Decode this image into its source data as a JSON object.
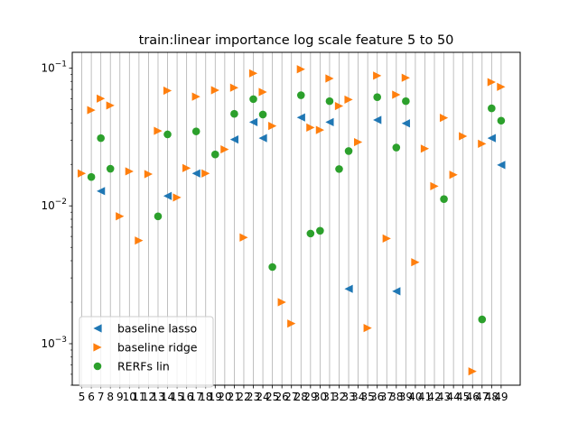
{
  "chart_data": {
    "type": "scatter",
    "title": "train:linear importance log scale feature 5 to 50",
    "xlabel": "",
    "ylabel": "",
    "yscale": "log",
    "ylim": [
      0.0005,
      0.13
    ],
    "xlim": [
      4,
      51
    ],
    "grid": "vertical lines at each feature",
    "legend_position": "lower-left",
    "x_ticks": [
      5,
      6,
      7,
      8,
      9,
      10,
      11,
      12,
      13,
      14,
      15,
      16,
      17,
      18,
      19,
      20,
      21,
      22,
      23,
      24,
      25,
      26,
      27,
      28,
      29,
      30,
      31,
      32,
      33,
      34,
      35,
      36,
      37,
      38,
      39,
      40,
      41,
      42,
      43,
      44,
      45,
      46,
      47,
      48,
      49
    ],
    "x_tick_labels": [
      "5",
      "6",
      "7",
      "8",
      "9",
      "10",
      "11",
      "12",
      "13",
      "14",
      "15",
      "16",
      "17",
      "18",
      "19",
      "20",
      "21",
      "22",
      "23",
      "24",
      "25",
      "26",
      "27",
      "28",
      "29",
      "30",
      "31",
      "32",
      "33",
      "34",
      "35",
      "36",
      "37",
      "38",
      "39",
      "40",
      "41",
      "42",
      "43",
      "44",
      "45",
      "46",
      "47",
      "48",
      "49"
    ],
    "y_tick_labels": [
      {
        "value": 0.001,
        "base": "10",
        "exp": "−3"
      },
      {
        "value": 0.01,
        "base": "10",
        "exp": "−2"
      },
      {
        "value": 0.1,
        "base": "10",
        "exp": "−1"
      }
    ],
    "series": [
      {
        "name": "baseline lasso",
        "color": "#1f77b4",
        "marker": "triangle-left",
        "points": [
          [
            7,
            0.0128
          ],
          [
            14,
            0.0118
          ],
          [
            17,
            0.0172
          ],
          [
            21,
            0.0303
          ],
          [
            23,
            0.0405
          ],
          [
            24,
            0.031
          ],
          [
            28,
            0.0438
          ],
          [
            31,
            0.0405
          ],
          [
            33,
            0.0025
          ],
          [
            36,
            0.042
          ],
          [
            38,
            0.0024
          ],
          [
            39,
            0.0397
          ],
          [
            48,
            0.031
          ],
          [
            49,
            0.0198
          ]
        ]
      },
      {
        "name": "baseline ridge",
        "color": "#ff7f0e",
        "marker": "triangle-right",
        "points": [
          [
            5,
            0.0172
          ],
          [
            6,
            0.0495
          ],
          [
            7,
            0.06
          ],
          [
            8,
            0.0535
          ],
          [
            9,
            0.0084
          ],
          [
            10,
            0.0178
          ],
          [
            11,
            0.0056
          ],
          [
            12,
            0.017
          ],
          [
            13,
            0.035
          ],
          [
            14,
            0.0685
          ],
          [
            15,
            0.0115
          ],
          [
            16,
            0.0188
          ],
          [
            17,
            0.062
          ],
          [
            18,
            0.0172
          ],
          [
            19,
            0.069
          ],
          [
            20,
            0.0257
          ],
          [
            21,
            0.072
          ],
          [
            22,
            0.0059
          ],
          [
            23,
            0.0915
          ],
          [
            24,
            0.067
          ],
          [
            25,
            0.038
          ],
          [
            26,
            0.002
          ],
          [
            27,
            0.0014
          ],
          [
            28,
            0.098
          ],
          [
            29,
            0.037
          ],
          [
            30,
            0.0355
          ],
          [
            31,
            0.084
          ],
          [
            32,
            0.053
          ],
          [
            33,
            0.059
          ],
          [
            34,
            0.029
          ],
          [
            35,
            0.0013
          ],
          [
            36,
            0.088
          ],
          [
            37,
            0.0058
          ],
          [
            38,
            0.064
          ],
          [
            39,
            0.085
          ],
          [
            40,
            0.0039
          ],
          [
            41,
            0.026
          ],
          [
            42,
            0.0139
          ],
          [
            43,
            0.0435
          ],
          [
            44,
            0.0168
          ],
          [
            45,
            0.032
          ],
          [
            46,
            0.00063
          ],
          [
            47,
            0.0282
          ],
          [
            48,
            0.079
          ],
          [
            49,
            0.073
          ]
        ]
      },
      {
        "name": "RERFs lin",
        "color": "#2ca02c",
        "marker": "circle",
        "points": [
          [
            6,
            0.0162
          ],
          [
            7,
            0.031
          ],
          [
            8,
            0.0186
          ],
          [
            13,
            0.0084
          ],
          [
            14,
            0.033
          ],
          [
            17,
            0.0347
          ],
          [
            19,
            0.0236
          ],
          [
            21,
            0.0465
          ],
          [
            23,
            0.0595
          ],
          [
            24,
            0.046
          ],
          [
            25,
            0.0036
          ],
          [
            28,
            0.0635
          ],
          [
            29,
            0.0063
          ],
          [
            30,
            0.0066
          ],
          [
            31,
            0.0575
          ],
          [
            32,
            0.0185
          ],
          [
            33,
            0.025
          ],
          [
            36,
            0.0615
          ],
          [
            38,
            0.0265
          ],
          [
            39,
            0.0575
          ],
          [
            43,
            0.0112
          ],
          [
            47,
            0.0015
          ],
          [
            48,
            0.051
          ],
          [
            49,
            0.0415
          ]
        ]
      }
    ]
  }
}
